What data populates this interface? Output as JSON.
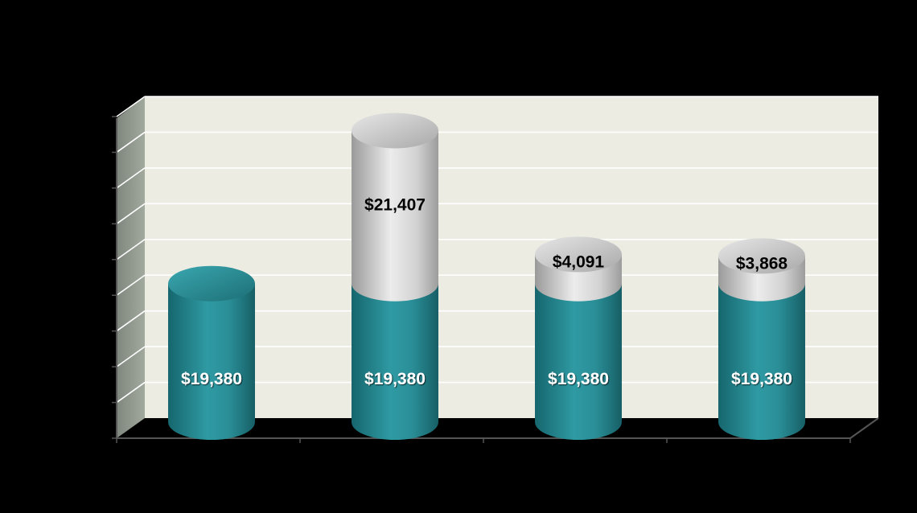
{
  "chart_data": {
    "type": "bar",
    "stacked": true,
    "style": "3d-cylinder",
    "categories": [
      "",
      "",
      "",
      ""
    ],
    "series": [
      {
        "values": [
          19380,
          19380,
          19380,
          19380
        ],
        "labels": [
          "$19,380",
          "$19,380",
          "$19,380",
          "$19,380"
        ]
      },
      {
        "values": [
          0,
          21407,
          4091,
          3868
        ],
        "labels": [
          "",
          "$21,407",
          "$4,091",
          "$3,868"
        ]
      }
    ],
    "ylim": [
      0,
      45000
    ],
    "grid": true,
    "legend": "none",
    "colors": {
      "base_series": "#2a8a92",
      "top_series": "#c9c9c9",
      "back_wall": "#ecece3",
      "side_wall": "#8a9288",
      "background": "#000000"
    }
  }
}
